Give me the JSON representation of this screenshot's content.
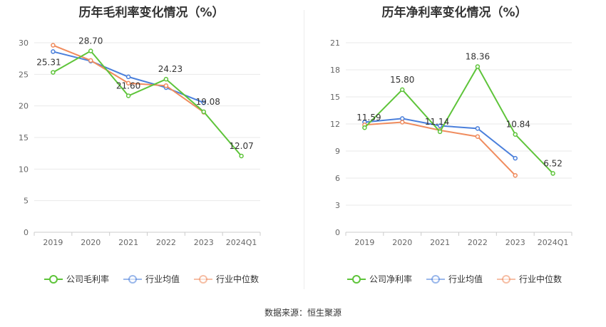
{
  "source_text": "数据来源：恒生聚源",
  "chart_data": [
    {
      "type": "line",
      "title": "历年毛利率变化情况（%）",
      "categories": [
        "2019",
        "2020",
        "2021",
        "2022",
        "2023",
        "2024Q1"
      ],
      "ylim": [
        0,
        30
      ],
      "yticks": [
        0,
        5,
        10,
        15,
        20,
        25,
        30
      ],
      "grid": true,
      "legend_position": "bottom",
      "series": [
        {
          "name": "公司毛利率",
          "color": "#5ec43a",
          "values": [
            25.31,
            28.7,
            21.6,
            24.23,
            19.08,
            12.07
          ],
          "labels": [
            "25.31",
            "28.70",
            "21.60",
            "24.23",
            "19.08",
            "12.07"
          ]
        },
        {
          "name": "行业均值",
          "color": "#4a7fdb",
          "values": [
            28.6,
            27.1,
            24.6,
            22.9,
            20.5,
            null
          ]
        },
        {
          "name": "行业中位数",
          "color": "#f08c5e",
          "values": [
            29.6,
            27.2,
            23.6,
            23.2,
            19.0,
            null
          ]
        }
      ]
    },
    {
      "type": "line",
      "title": "历年净利率变化情况（%）",
      "categories": [
        "2019",
        "2020",
        "2021",
        "2022",
        "2023",
        "2024Q1"
      ],
      "ylim": [
        0,
        21
      ],
      "yticks": [
        0,
        3,
        6,
        9,
        12,
        15,
        18,
        21
      ],
      "grid": true,
      "legend_position": "bottom",
      "series": [
        {
          "name": "公司净利率",
          "color": "#5ec43a",
          "values": [
            11.59,
            15.8,
            11.14,
            18.36,
            10.84,
            6.52
          ],
          "labels": [
            "11.59",
            "15.80",
            "11.14",
            "18.36",
            "10.84",
            "6.52"
          ]
        },
        {
          "name": "行业均值",
          "color": "#4a7fdb",
          "values": [
            12.2,
            12.6,
            11.8,
            11.5,
            8.2,
            null
          ]
        },
        {
          "name": "行业中位数",
          "color": "#f08c5e",
          "values": [
            11.9,
            12.2,
            11.3,
            10.6,
            6.3,
            null
          ]
        }
      ]
    }
  ]
}
